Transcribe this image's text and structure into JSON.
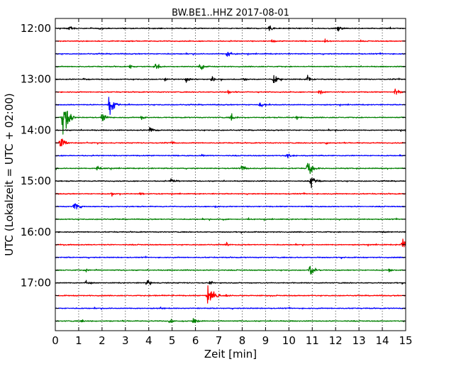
{
  "chart_data": {
    "type": "line",
    "title": "BW.BE1..HHZ 2017-08-01",
    "xlabel": "Zeit  [min]",
    "ylabel": "UTC (Lokalzeit = UTC + 02:00)",
    "xlim": [
      0,
      15
    ],
    "xticks": [
      0,
      1,
      2,
      3,
      4,
      5,
      6,
      7,
      8,
      9,
      10,
      11,
      12,
      13,
      14,
      15
    ],
    "x_grid": true,
    "trace_interval_min": 15,
    "yticks": [
      "12:00",
      "13:00",
      "14:00",
      "15:00",
      "16:00",
      "17:00"
    ],
    "colors": [
      "#000000",
      "#ff0000",
      "#0000ff",
      "#008000"
    ],
    "traces": [
      {
        "start": "12:00",
        "color": "#000000",
        "events": [
          {
            "x": 0.6,
            "amp": 0.35
          },
          {
            "x": 1.9,
            "amp": 0.2
          },
          {
            "x": 9.15,
            "amp": 0.4
          },
          {
            "x": 12.1,
            "amp": 0.45
          }
        ]
      },
      {
        "start": "12:15",
        "color": "#ff0000",
        "events": [
          {
            "x": 9.3,
            "amp": 0.25
          },
          {
            "x": 11.55,
            "amp": 0.3
          }
        ]
      },
      {
        "start": "12:30",
        "color": "#0000ff",
        "events": [
          {
            "x": 7.35,
            "amp": 0.5
          }
        ]
      },
      {
        "start": "12:45",
        "color": "#008000",
        "events": [
          {
            "x": 3.2,
            "amp": 0.2
          },
          {
            "x": 4.3,
            "amp": 0.55
          },
          {
            "x": 6.2,
            "amp": 0.5
          }
        ]
      },
      {
        "start": "13:00",
        "color": "#000000",
        "events": [
          {
            "x": 1.2,
            "amp": 0.2
          },
          {
            "x": 4.7,
            "amp": 0.2
          },
          {
            "x": 5.6,
            "amp": 0.45
          },
          {
            "x": 6.7,
            "amp": 0.35
          },
          {
            "x": 8.1,
            "amp": 0.3
          },
          {
            "x": 9.35,
            "amp": 0.5
          },
          {
            "x": 10.8,
            "amp": 0.5
          }
        ]
      },
      {
        "start": "13:15",
        "color": "#ff0000",
        "events": [
          {
            "x": 7.4,
            "amp": 0.2
          },
          {
            "x": 11.3,
            "amp": 0.35
          },
          {
            "x": 14.55,
            "amp": 0.45
          }
        ]
      },
      {
        "start": "13:30",
        "color": "#0000ff",
        "events": [
          {
            "x": 2.3,
            "amp": 1.0
          },
          {
            "x": 8.75,
            "amp": 0.35
          }
        ]
      },
      {
        "start": "13:45",
        "color": "#008000",
        "events": [
          {
            "x": 0.3,
            "amp": 1.6
          },
          {
            "x": 2.0,
            "amp": 0.6
          },
          {
            "x": 3.7,
            "amp": 0.3
          },
          {
            "x": 7.5,
            "amp": 0.55
          },
          {
            "x": 10.3,
            "amp": 0.3
          }
        ]
      },
      {
        "start": "14:00",
        "color": "#000000",
        "events": [
          {
            "x": 4.05,
            "amp": 0.5
          },
          {
            "x": 15.0,
            "amp": 0.3
          }
        ]
      },
      {
        "start": "14:15",
        "color": "#ff0000",
        "events": [
          {
            "x": 0.2,
            "amp": 0.7
          },
          {
            "x": 5.0,
            "amp": 0.2
          },
          {
            "x": 11.6,
            "amp": 0.25
          }
        ]
      },
      {
        "start": "14:30",
        "color": "#0000ff",
        "events": [
          {
            "x": 6.3,
            "amp": 0.2
          },
          {
            "x": 9.95,
            "amp": 0.35
          }
        ]
      },
      {
        "start": "14:45",
        "color": "#008000",
        "events": [
          {
            "x": 1.8,
            "amp": 0.35
          },
          {
            "x": 8.0,
            "amp": 0.45
          },
          {
            "x": 10.8,
            "amp": 1.0
          }
        ]
      },
      {
        "start": "15:00",
        "color": "#000000",
        "events": [
          {
            "x": 4.95,
            "amp": 0.5
          },
          {
            "x": 10.95,
            "amp": 0.7
          }
        ]
      },
      {
        "start": "15:15",
        "color": "#ff0000",
        "events": [
          {
            "x": 2.4,
            "amp": 0.2
          },
          {
            "x": 3.65,
            "amp": 0.2
          }
        ]
      },
      {
        "start": "15:30",
        "color": "#0000ff",
        "events": [
          {
            "x": 0.8,
            "amp": 0.75
          },
          {
            "x": 6.85,
            "amp": 0.2
          }
        ]
      },
      {
        "start": "15:45",
        "color": "#008000",
        "events": [
          {
            "x": 7.2,
            "amp": 0.15
          }
        ]
      },
      {
        "start": "16:00",
        "color": "#000000",
        "events": [
          {
            "x": 14.0,
            "amp": 0.15
          }
        ]
      },
      {
        "start": "16:15",
        "color": "#ff0000",
        "events": [
          {
            "x": 7.3,
            "amp": 0.3
          },
          {
            "x": 14.85,
            "amp": 1.0
          }
        ]
      },
      {
        "start": "16:30",
        "color": "#0000ff",
        "events": []
      },
      {
        "start": "16:45",
        "color": "#008000",
        "events": [
          {
            "x": 1.3,
            "amp": 0.25
          },
          {
            "x": 10.9,
            "amp": 0.8
          },
          {
            "x": 14.3,
            "amp": 0.25
          }
        ]
      },
      {
        "start": "17:00",
        "color": "#000000",
        "events": [
          {
            "x": 1.3,
            "amp": 0.4
          },
          {
            "x": 3.9,
            "amp": 0.4
          },
          {
            "x": 6.6,
            "amp": 0.25
          }
        ]
      },
      {
        "start": "17:15",
        "color": "#ff0000",
        "events": [
          {
            "x": 6.5,
            "amp": 1.3
          },
          {
            "x": 4.3,
            "amp": 0.15
          },
          {
            "x": 7.3,
            "amp": 0.2
          }
        ]
      },
      {
        "start": "17:30",
        "color": "#0000ff",
        "events": [
          {
            "x": 4.5,
            "amp": 0.15
          }
        ]
      },
      {
        "start": "17:45",
        "color": "#008000",
        "events": [
          {
            "x": 1.1,
            "amp": 0.3
          },
          {
            "x": 4.9,
            "amp": 0.3
          },
          {
            "x": 5.9,
            "amp": 0.45
          }
        ]
      }
    ]
  }
}
